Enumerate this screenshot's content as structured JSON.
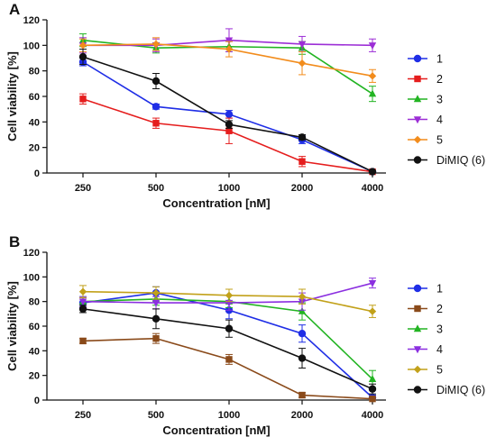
{
  "chart_data": [
    {
      "panel_label": "A",
      "type": "line",
      "ylabel": "Cell viability [%]",
      "xlabel": "Concentration [nM]",
      "categories": [
        "250",
        "500",
        "1000",
        "2000",
        "4000"
      ],
      "ylim": [
        0,
        120
      ],
      "yticks": [
        0,
        20,
        40,
        60,
        80,
        100,
        120
      ],
      "grid": false,
      "legend_position": "right",
      "series": [
        {
          "name": "1",
          "color": "#1f2ee6",
          "marker": "circle",
          "values": [
            87,
            52,
            46,
            26,
            1
          ],
          "errors": [
            3,
            2,
            3,
            3,
            1
          ]
        },
        {
          "name": "2",
          "color": "#e51d1d",
          "marker": "square",
          "values": [
            58,
            39,
            33,
            9,
            1
          ],
          "errors": [
            4,
            4,
            10,
            4,
            1
          ]
        },
        {
          "name": "3",
          "color": "#22b422",
          "marker": "triangle-up",
          "values": [
            104,
            98,
            99,
            98,
            62
          ],
          "errors": [
            5,
            4,
            4,
            5,
            6
          ]
        },
        {
          "name": "4",
          "color": "#9c2ed6",
          "marker": "triangle-down",
          "values": [
            100,
            100,
            104,
            101,
            100
          ],
          "errors": [
            6,
            5,
            9,
            6,
            5
          ]
        },
        {
          "name": "5",
          "color": "#f28c1c",
          "marker": "diamond",
          "values": [
            100,
            101,
            97,
            86,
            76
          ],
          "errors": [
            5,
            5,
            6,
            9,
            5
          ]
        },
        {
          "name": "DiMIQ (6)",
          "color": "#111111",
          "marker": "circle",
          "values": [
            91,
            72,
            38,
            28,
            1
          ],
          "errors": [
            6,
            6,
            3,
            2,
            1
          ]
        }
      ]
    },
    {
      "panel_label": "B",
      "type": "line",
      "ylabel": "Cell viability [%]",
      "xlabel": "Concentration [nM]",
      "categories": [
        "250",
        "500",
        "1000",
        "2000",
        "4000"
      ],
      "ylim": [
        0,
        120
      ],
      "yticks": [
        0,
        20,
        40,
        60,
        80,
        100,
        120
      ],
      "grid": false,
      "legend_position": "right",
      "series": [
        {
          "name": "1",
          "color": "#1f2ee6",
          "marker": "circle",
          "values": [
            79,
            87,
            73,
            54,
            2
          ],
          "errors": [
            4,
            5,
            7,
            7,
            2
          ]
        },
        {
          "name": "2",
          "color": "#8a4a1a",
          "marker": "square",
          "values": [
            48,
            50,
            33,
            4,
            1
          ],
          "errors": [
            2,
            4,
            4,
            2,
            1
          ]
        },
        {
          "name": "3",
          "color": "#22b422",
          "marker": "triangle-up",
          "values": [
            80,
            82,
            80,
            72,
            17
          ],
          "errors": [
            4,
            5,
            5,
            7,
            7
          ]
        },
        {
          "name": "4",
          "color": "#8b2fe0",
          "marker": "triangle-down",
          "values": [
            80,
            79,
            79,
            80,
            95
          ],
          "errors": [
            4,
            5,
            6,
            7,
            4
          ]
        },
        {
          "name": "5",
          "color": "#c2a11a",
          "marker": "diamond",
          "values": [
            88,
            87,
            85,
            84,
            72
          ],
          "errors": [
            5,
            5,
            5,
            6,
            5
          ]
        },
        {
          "name": "DiMIQ (6)",
          "color": "#111111",
          "marker": "circle",
          "values": [
            74,
            66,
            58,
            34,
            9
          ],
          "errors": [
            3,
            8,
            7,
            8,
            4
          ]
        }
      ]
    }
  ]
}
